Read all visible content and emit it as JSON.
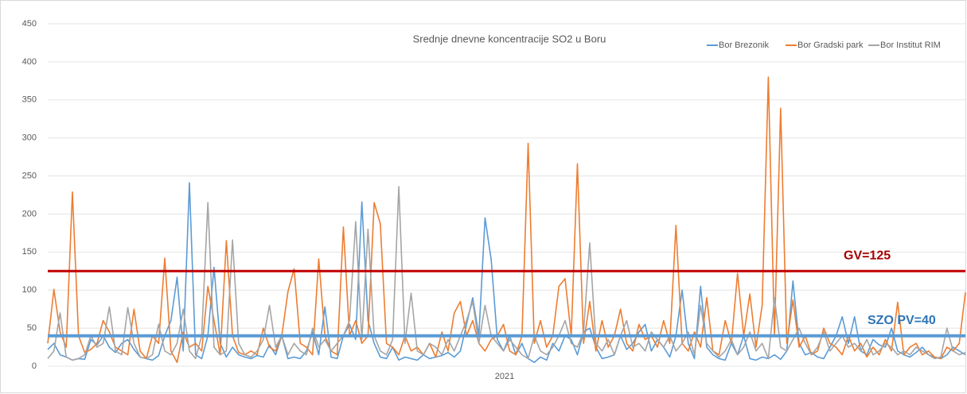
{
  "chart_data": {
    "type": "line",
    "title": "Srednje dnevne koncentracije SO2 u Boru",
    "xlabel": "2021",
    "ylim": [
      0,
      450
    ],
    "yticks": [
      0,
      50,
      100,
      150,
      200,
      250,
      300,
      350,
      400,
      450
    ],
    "grid": true,
    "legend": "top-right",
    "series": [
      {
        "name": "Bor Brezonik",
        "color": "#5b9bd5",
        "values": [
          22,
          30,
          15,
          12,
          8,
          10,
          9,
          35,
          28,
          40,
          25,
          18,
          30,
          35,
          22,
          12,
          10,
          8,
          14,
          40,
          60,
          117,
          20,
          241,
          15,
          10,
          40,
          130,
          30,
          12,
          25,
          15,
          12,
          10,
          14,
          12,
          28,
          15,
          40,
          10,
          12,
          10,
          20,
          45,
          15,
          78,
          12,
          10,
          40,
          55,
          35,
          216,
          60,
          30,
          12,
          10,
          25,
          8,
          12,
          10,
          8,
          15,
          10,
          12,
          14,
          18,
          12,
          20,
          55,
          90,
          40,
          195,
          140,
          35,
          20,
          40,
          15,
          30,
          10,
          5,
          12,
          8,
          30,
          20,
          40,
          35,
          15,
          45,
          50,
          25,
          10,
          12,
          15,
          40,
          22,
          30,
          45,
          55,
          20,
          35,
          25,
          12,
          40,
          100,
          30,
          10,
          105,
          25,
          15,
          10,
          8,
          30,
          15,
          40,
          10,
          8,
          12,
          10,
          15,
          9,
          20,
          112,
          30,
          15,
          18,
          12,
          10,
          25,
          40,
          65,
          30,
          65,
          20,
          15,
          35,
          28,
          25,
          50,
          20,
          15,
          12,
          18,
          25,
          15,
          12,
          10,
          15,
          25,
          20,
          15
        ]
      },
      {
        "name": "Bor Gradski park",
        "color": "#ed7d31",
        "values": [
          30,
          101,
          45,
          25,
          229,
          40,
          18,
          22,
          30,
          60,
          45,
          25,
          20,
          15,
          75,
          20,
          10,
          40,
          30,
          142,
          20,
          5,
          45,
          25,
          30,
          20,
          105,
          60,
          15,
          165,
          40,
          18,
          15,
          20,
          15,
          50,
          25,
          20,
          40,
          98,
          128,
          30,
          25,
          15,
          141,
          40,
          20,
          15,
          183,
          40,
          60,
          30,
          40,
          215,
          187,
          30,
          25,
          15,
          40,
          20,
          25,
          15,
          30,
          12,
          45,
          20,
          70,
          85,
          40,
          60,
          30,
          20,
          35,
          40,
          55,
          20,
          15,
          40,
          293,
          30,
          60,
          25,
          40,
          105,
          115,
          40,
          266,
          30,
          85,
          20,
          60,
          25,
          40,
          75,
          30,
          20,
          55,
          35,
          40,
          25,
          60,
          30,
          185,
          30,
          20,
          45,
          25,
          90,
          20,
          15,
          60,
          30,
          122,
          40,
          95,
          25,
          80,
          380,
          40,
          339,
          30,
          87,
          25,
          40,
          15,
          20,
          50,
          30,
          25,
          15,
          40,
          20,
          30,
          12,
          25,
          15,
          35,
          20,
          84,
          15,
          25,
          30,
          15,
          20,
          12,
          10,
          25,
          20,
          30,
          97
        ]
      },
      {
        "name": "Bor Institut RIM",
        "color": "#a5a5a5",
        "values": [
          10,
          20,
          70,
          12,
          8,
          10,
          15,
          40,
          25,
          30,
          78,
          20,
          15,
          77,
          30,
          12,
          10,
          15,
          55,
          20,
          15,
          30,
          75,
          20,
          10,
          40,
          215,
          25,
          15,
          20,
          166,
          30,
          15,
          12,
          20,
          35,
          80,
          25,
          40,
          15,
          30,
          20,
          15,
          50,
          25,
          35,
          20,
          30,
          40,
          60,
          190,
          35,
          180,
          40,
          20,
          15,
          35,
          236,
          30,
          96,
          20,
          15,
          30,
          25,
          15,
          35,
          20,
          40,
          60,
          85,
          30,
          80,
          40,
          30,
          20,
          35,
          25,
          15,
          10,
          40,
          20,
          15,
          25,
          40,
          60,
          30,
          25,
          45,
          162,
          30,
          20,
          35,
          15,
          40,
          60,
          25,
          30,
          20,
          45,
          35,
          25,
          40,
          20,
          30,
          45,
          15,
          80,
          30,
          20,
          12,
          20,
          35,
          15,
          25,
          45,
          20,
          30,
          10,
          90,
          25,
          20,
          35,
          50,
          30,
          15,
          25,
          45,
          20,
          30,
          40,
          25,
          30,
          20,
          35,
          15,
          20,
          30,
          25,
          15,
          20,
          15,
          25,
          20,
          15,
          10,
          12,
          50,
          20,
          15,
          18
        ]
      }
    ],
    "reference_lines": [
      {
        "label": "GV=125",
        "value": 125,
        "color": "#c00000"
      },
      {
        "label": "SZO PV=40",
        "value": 40,
        "color": "#5b9bd5"
      }
    ]
  }
}
